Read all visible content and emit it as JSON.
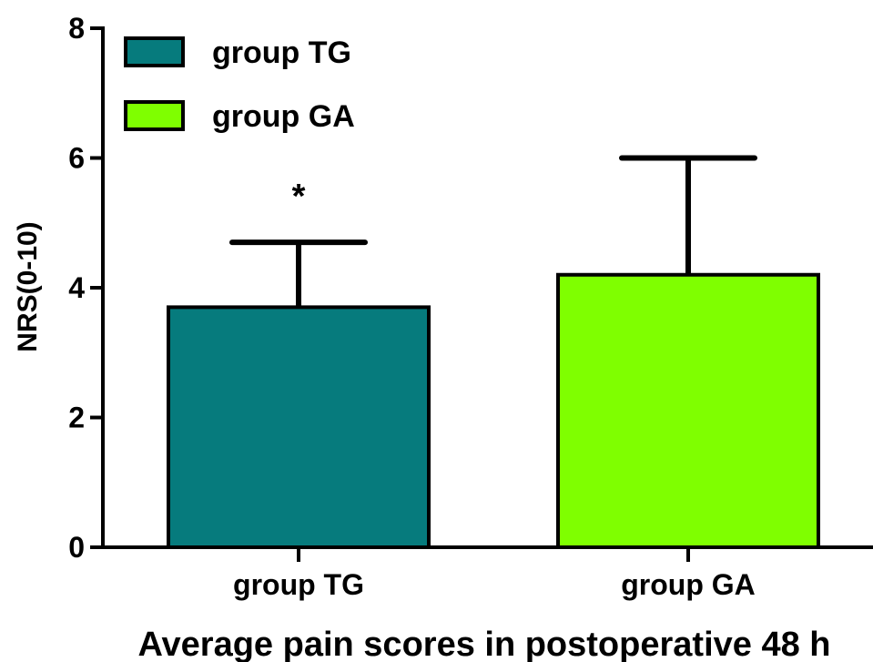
{
  "chart_data": {
    "type": "bar",
    "categories": [
      "group TG",
      "group GA"
    ],
    "series": [
      {
        "values": [
          3.7,
          4.2
        ],
        "error_plus": [
          1.0,
          1.8
        ],
        "colors": [
          "#067b7d",
          "#7fff00"
        ]
      }
    ],
    "legend": {
      "position": "top-left",
      "entries": [
        {
          "label": "group TG",
          "color": "#067b7d"
        },
        {
          "label": "group GA",
          "color": "#7fff00"
        }
      ]
    },
    "annotations": [
      {
        "text": "*",
        "category": "group TG"
      }
    ],
    "ylabel": "NRS(0-10)",
    "xlabel": "Average  pain scores in postoperative 48 h",
    "ylim": [
      0,
      8
    ],
    "yticks": [
      0,
      2,
      4,
      6,
      8
    ],
    "grid": false
  }
}
